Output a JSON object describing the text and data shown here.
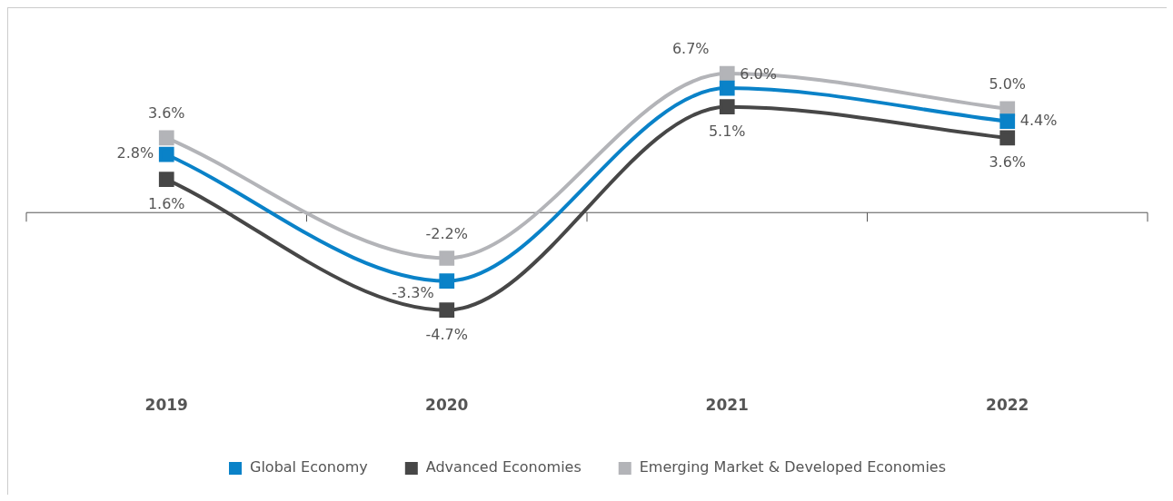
{
  "chart_data": {
    "type": "line",
    "categories": [
      "2019",
      "2020",
      "2021",
      "2022"
    ],
    "series": [
      {
        "name": "Global Economy",
        "color": "#0a82c8",
        "values": [
          2.8,
          -3.3,
          6.0,
          4.4
        ],
        "value_labels": [
          "2.8%",
          "-3.3%",
          "6.0%",
          "4.4%"
        ]
      },
      {
        "name": "Advanced Economies",
        "color": "#474747",
        "values": [
          1.6,
          -4.7,
          5.1,
          3.6
        ],
        "value_labels": [
          "1.6%",
          "-4.7%",
          "5.1%",
          "3.6%"
        ]
      },
      {
        "name": "Emerging Market & Developed Economies",
        "color": "#b3b4b8",
        "values": [
          3.6,
          -2.2,
          6.7,
          5.0
        ],
        "value_labels": [
          "3.6%",
          "-2.2%",
          "6.7%",
          "5.0%"
        ]
      }
    ],
    "legend": "bottom",
    "marker": "square"
  }
}
